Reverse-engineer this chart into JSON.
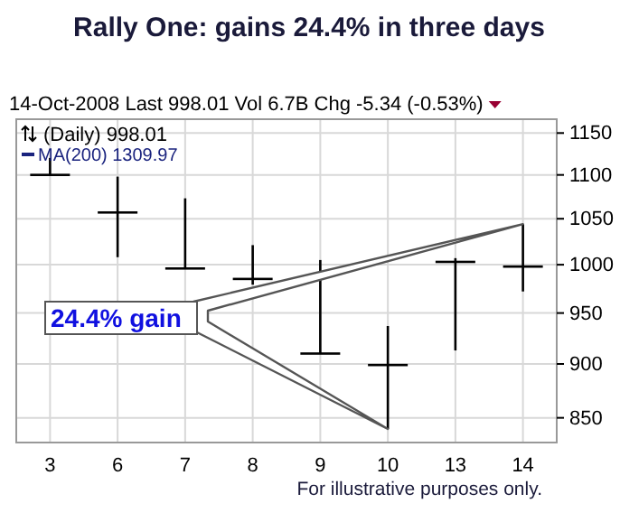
{
  "chart_data": {
    "type": "candlestick",
    "title": "Rally One:  gains 24.4% in three days",
    "subtitle": "14-Oct-2008      Last 998.01  Vol 6.7B  Chg -5.34 (-0.53%)",
    "categories": [
      "3",
      "6",
      "7",
      "8",
      "9",
      "10",
      "13",
      "14"
    ],
    "ohlc": [
      [
        1100,
        1120,
        1099,
        1100
      ],
      [
        1057,
        1098,
        1008,
        1057
      ],
      [
        996,
        1073,
        996,
        996
      ],
      [
        985,
        1021,
        979,
        985
      ],
      [
        910,
        1005,
        910,
        910
      ],
      [
        899,
        937,
        840,
        899
      ],
      [
        1003,
        1007,
        913,
        1003
      ],
      [
        998.01,
        1044,
        972,
        998.01
      ]
    ],
    "color": "#000000",
    "ylim": [
      828,
      1167
    ],
    "yticks": [
      850,
      900,
      950,
      1000,
      1050,
      1100,
      1150
    ],
    "log": "y",
    "grid": true,
    "annotations": [
      "24.4% gain",
      "(Daily) 998.01",
      "MA(200) 1309.97",
      "For illustrative purposes only."
    ]
  }
}
